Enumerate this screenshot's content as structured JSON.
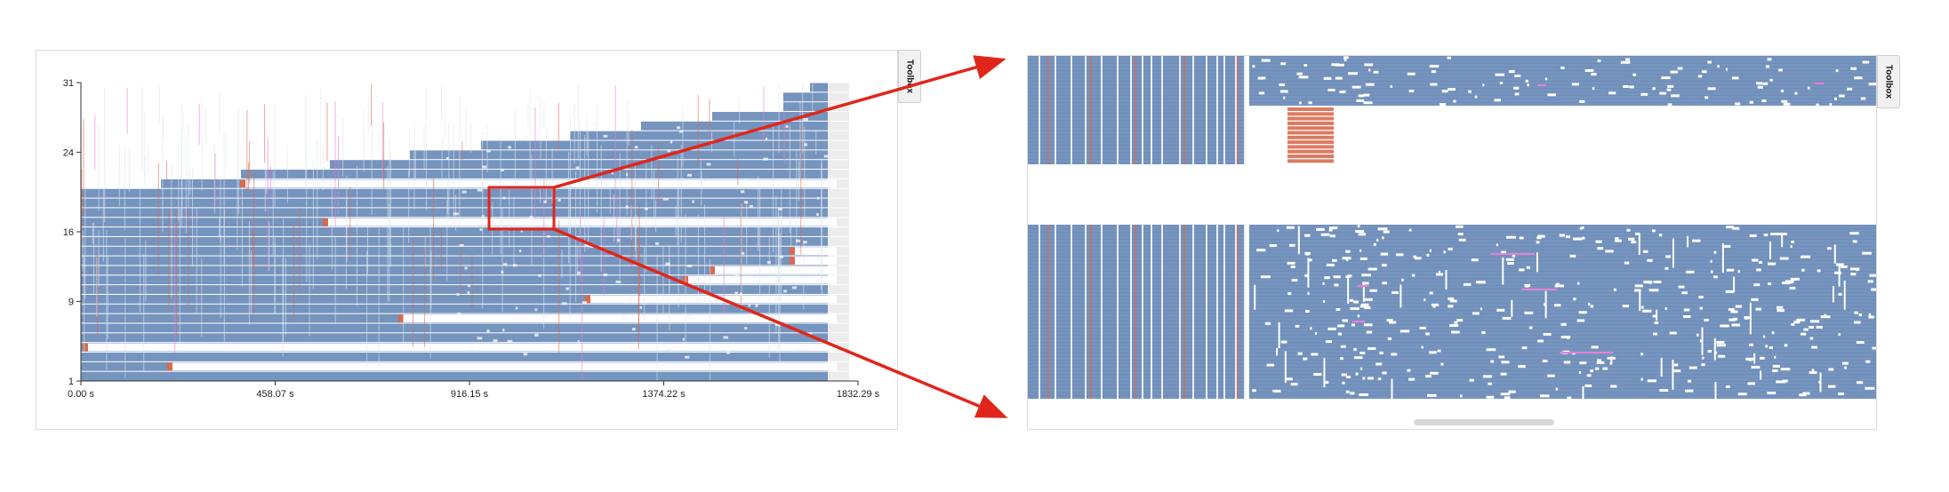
{
  "left_chart": {
    "toolbox_label": "Toolbox",
    "y_ticks": [
      "31",
      "24",
      "16",
      "9",
      "1"
    ],
    "x_ticks": [
      "0.00 s",
      "458.07 s",
      "916.15 s",
      "1374.22 s",
      "1832.29 s"
    ],
    "y_range": [
      1,
      31
    ],
    "x_range_s": [
      0,
      1832.29
    ]
  },
  "right_chart": {
    "toolbox_label": "Toolbox"
  },
  "colors": {
    "bar": "#7594be",
    "bar_dark": "#6a88b2",
    "highlight_orange": "#d96b4f",
    "highlight_pink": "#e77fd9",
    "zoom_box": "#e0261b",
    "arrow": "#e0261b",
    "gap": "#ffffff",
    "axis": "#333333"
  }
}
